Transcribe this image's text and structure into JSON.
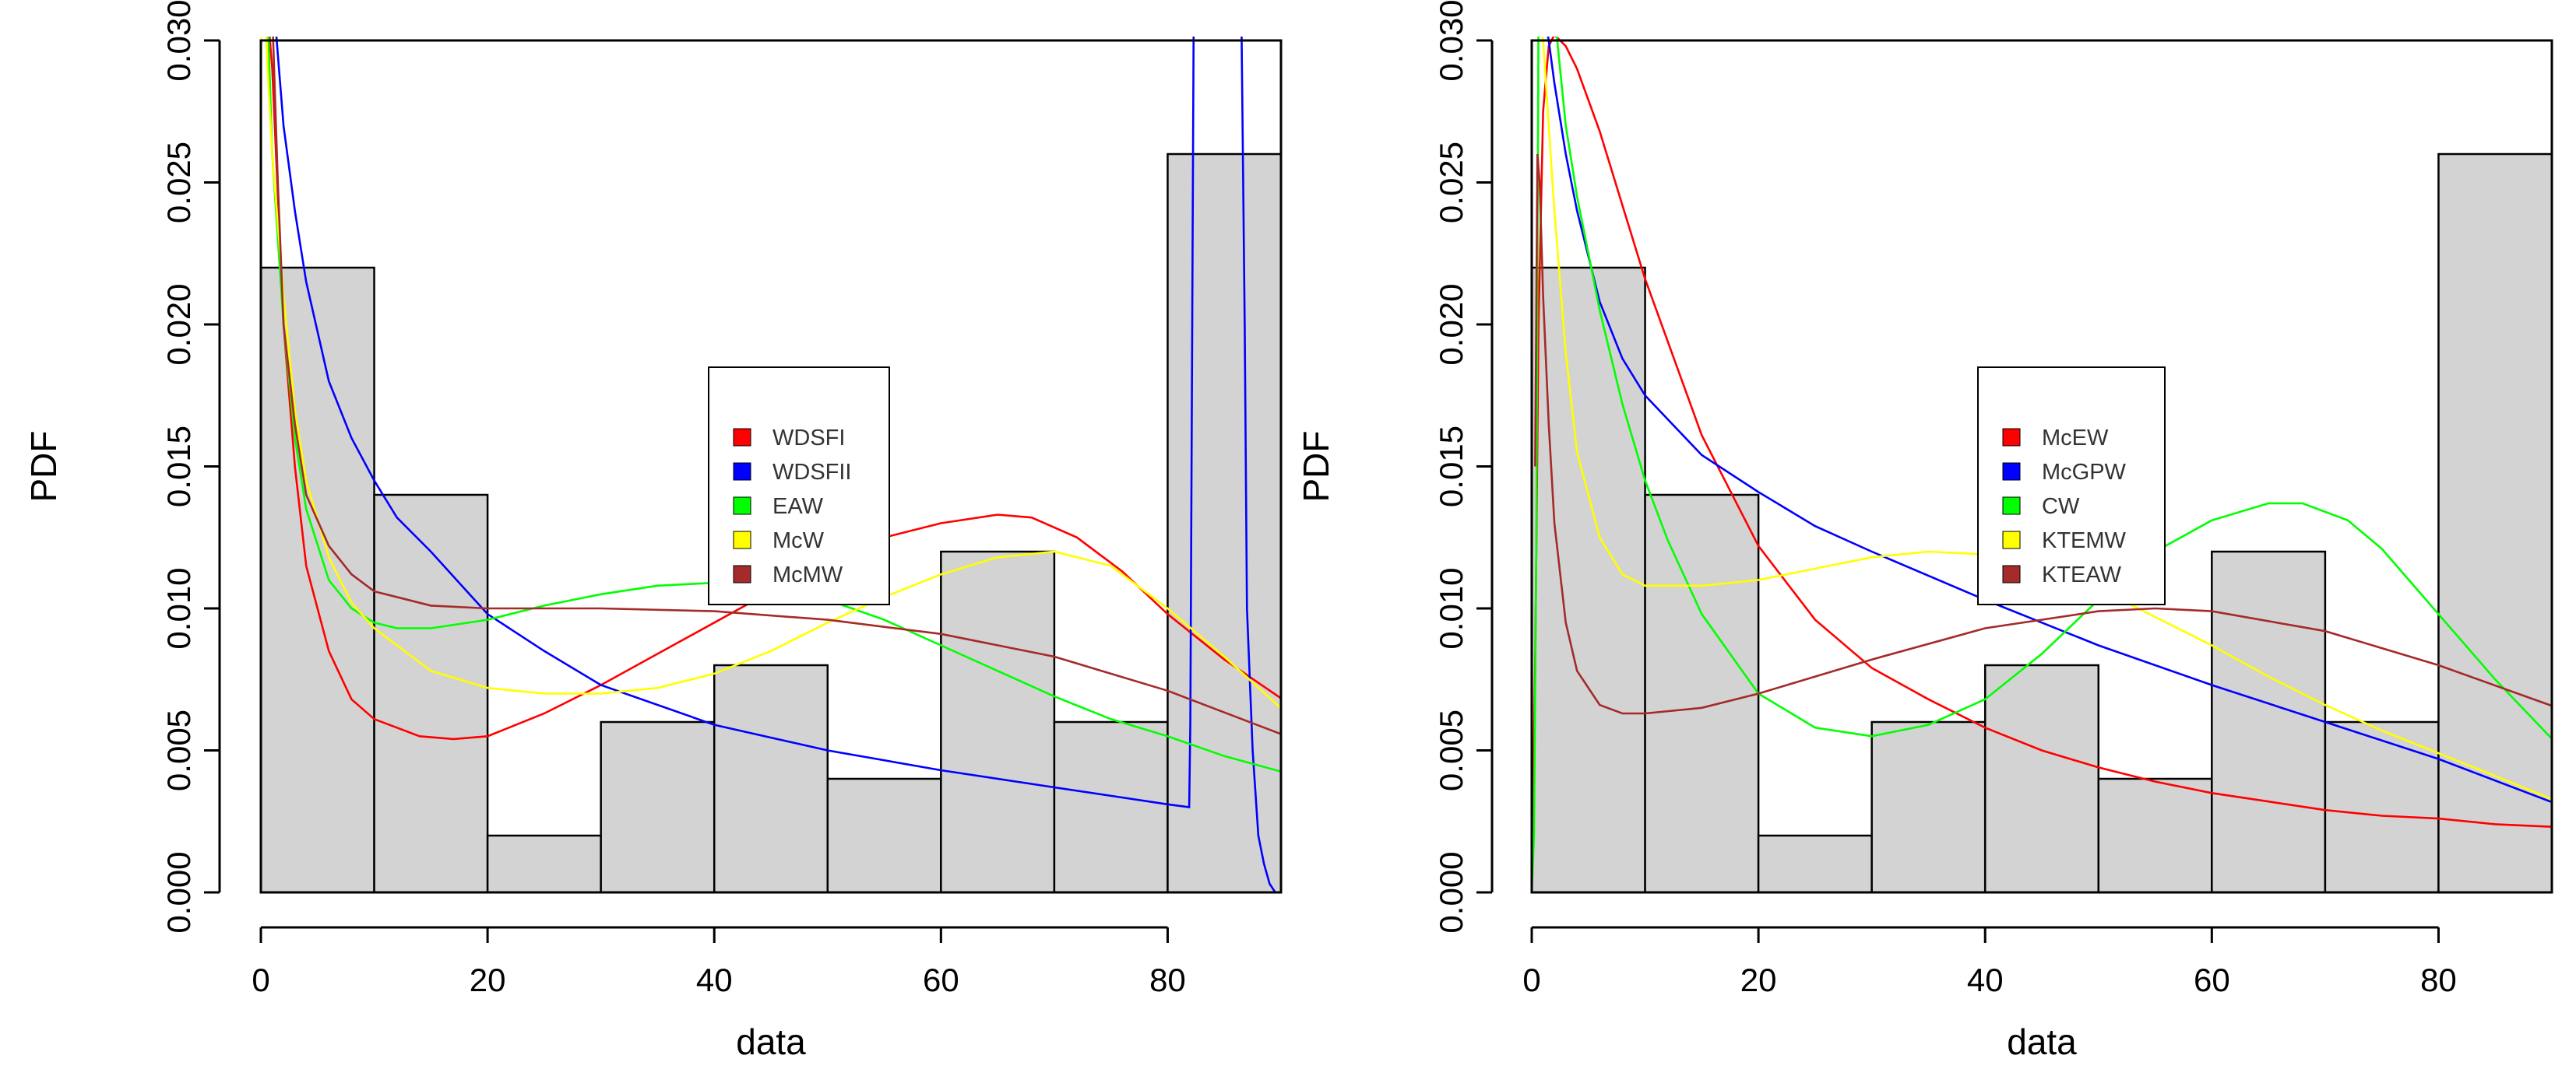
{
  "chart_data": [
    {
      "type": "histogram_with_density_curves",
      "xlabel": "data",
      "ylabel": "PDF",
      "xlim": [
        0,
        90
      ],
      "ylim": [
        0,
        0.03
      ],
      "x_ticks": [
        0,
        20,
        40,
        60,
        80
      ],
      "x_tick_labels": [
        "0",
        "20",
        "40",
        "60",
        "80"
      ],
      "y_ticks": [
        0,
        0.005,
        0.01,
        0.015,
        0.02,
        0.025,
        0.03
      ],
      "y_tick_labels": [
        "0.000",
        "0.005",
        "0.010",
        "0.015",
        "0.020",
        "0.025",
        "0.030"
      ],
      "histogram": {
        "bin_edges": [
          0,
          10,
          20,
          30,
          40,
          50,
          60,
          70,
          80,
          90
        ],
        "density": [
          0.022,
          0.014,
          0.002,
          0.006,
          0.008,
          0.004,
          0.012,
          0.006,
          0.026
        ]
      },
      "legend_position": "center-right",
      "series": [
        {
          "name": "WDSFI",
          "color": "#ff0000",
          "x": [
            0.3,
            0.6,
            1,
            2,
            3,
            4,
            6,
            8,
            10,
            14,
            17,
            20,
            25,
            30,
            35,
            40,
            45,
            50,
            55,
            60,
            65,
            68,
            72,
            76,
            80,
            85,
            90.5
          ],
          "y": [
            0.031,
            0.031,
            0.029,
            0.02,
            0.015,
            0.0115,
            0.0085,
            0.0068,
            0.0061,
            0.0055,
            0.0054,
            0.0055,
            0.0063,
            0.0073,
            0.0084,
            0.0095,
            0.0106,
            0.0117,
            0.0125,
            0.013,
            0.0133,
            0.0132,
            0.0125,
            0.0113,
            0.0098,
            0.0082,
            0.0067
          ]
        },
        {
          "name": "WDSFII",
          "color": "#0000ff",
          "x": [
            1.2,
            1.5,
            2,
            3,
            4,
            6,
            8,
            10,
            12,
            15,
            20,
            25,
            30,
            40,
            50,
            60,
            70,
            75,
            80,
            81.9,
            82,
            82.3,
            83,
            84,
            85,
            86,
            86.5,
            86.8,
            87,
            87.5,
            88,
            88.5,
            89,
            89.5,
            90.5
          ],
          "y": [
            0.031,
            0.0295,
            0.027,
            0.024,
            0.0215,
            0.018,
            0.016,
            0.0145,
            0.0132,
            0.012,
            0.0098,
            0.0085,
            0.0073,
            0.0059,
            0.005,
            0.0043,
            0.0037,
            0.0034,
            0.0031,
            0.003,
            0.006,
            0.031,
            0.031,
            0.031,
            0.031,
            0.031,
            0.031,
            0.02,
            0.01,
            0.005,
            0.002,
            0.001,
            0.0003,
            0.0,
            0.0
          ]
        },
        {
          "name": "EAW",
          "color": "#00ff00",
          "x": [
            0.3,
            0.6,
            1,
            2,
            3,
            4,
            6,
            8,
            10,
            12,
            15,
            20,
            25,
            30,
            35,
            40,
            45,
            50,
            55,
            60,
            65,
            70,
            75,
            80,
            85,
            90.5
          ],
          "y": [
            0.031,
            0.031,
            0.026,
            0.02,
            0.016,
            0.0135,
            0.011,
            0.01,
            0.0095,
            0.0093,
            0.0093,
            0.0096,
            0.0101,
            0.0105,
            0.0108,
            0.0109,
            0.0107,
            0.0103,
            0.0096,
            0.0087,
            0.0078,
            0.0069,
            0.0061,
            0.0055,
            0.0048,
            0.0042
          ]
        },
        {
          "name": "McW",
          "color": "#ffff00",
          "x": [
            0,
            0.01,
            0.2,
            0.4,
            0.6,
            1,
            2,
            3,
            4,
            6,
            8,
            10,
            15,
            20,
            25,
            30,
            35,
            40,
            45,
            50,
            55,
            60,
            65,
            70,
            75,
            80,
            85,
            90.5
          ],
          "y": [
            0,
            0.031,
            0.031,
            0.031,
            0.029,
            0.026,
            0.021,
            0.017,
            0.0145,
            0.0118,
            0.0102,
            0.0093,
            0.0078,
            0.0072,
            0.007,
            0.007,
            0.0072,
            0.0077,
            0.0085,
            0.0095,
            0.0104,
            0.0112,
            0.0118,
            0.012,
            0.0115,
            0.01,
            0.0083,
            0.0063
          ]
        },
        {
          "name": "McMW",
          "color": "#a52a2a",
          "x": [
            1,
            1.5,
            2,
            3,
            4,
            6,
            8,
            10,
            15,
            20,
            25,
            30,
            40,
            50,
            60,
            70,
            80,
            90.5
          ],
          "y": [
            0.031,
            0.025,
            0.02,
            0.0165,
            0.014,
            0.0122,
            0.0112,
            0.0106,
            0.0101,
            0.01,
            0.01,
            0.01,
            0.0099,
            0.0096,
            0.0091,
            0.0083,
            0.0071,
            0.0055
          ]
        }
      ]
    },
    {
      "type": "histogram_with_density_curves",
      "xlabel": "data",
      "ylabel": "PDF",
      "xlim": [
        0,
        90
      ],
      "ylim": [
        0,
        0.03
      ],
      "x_ticks": [
        0,
        20,
        40,
        60,
        80
      ],
      "x_tick_labels": [
        "0",
        "20",
        "40",
        "60",
        "80"
      ],
      "y_ticks": [
        0,
        0.005,
        0.01,
        0.015,
        0.02,
        0.025,
        0.03
      ],
      "y_tick_labels": [
        "0.000",
        "0.005",
        "0.010",
        "0.015",
        "0.020",
        "0.025",
        "0.030"
      ],
      "histogram": {
        "bin_edges": [
          0,
          10,
          20,
          30,
          40,
          50,
          60,
          70,
          80,
          90
        ],
        "density": [
          0.022,
          0.014,
          0.002,
          0.006,
          0.008,
          0.004,
          0.012,
          0.006,
          0.026
        ]
      },
      "legend_position": "center",
      "series": [
        {
          "name": "McEW",
          "color": "#ff0000",
          "x": [
            0,
            0.3,
            0.6,
            1,
            1.5,
            2,
            3,
            4,
            6,
            8,
            10,
            15,
            20,
            25,
            30,
            35,
            40,
            45,
            50,
            55,
            60,
            65,
            70,
            75,
            80,
            85,
            90.5
          ],
          "y": [
            0,
            0.008,
            0.02,
            0.0275,
            0.0298,
            0.0302,
            0.0298,
            0.029,
            0.0268,
            0.0242,
            0.0216,
            0.0161,
            0.0122,
            0.0096,
            0.0079,
            0.0068,
            0.0058,
            0.005,
            0.0044,
            0.0039,
            0.0035,
            0.0032,
            0.0029,
            0.0027,
            0.0026,
            0.0024,
            0.0023
          ]
        },
        {
          "name": "McGPW",
          "color": "#0000ff",
          "x": [
            0.9,
            1.1,
            1.5,
            2,
            3,
            4,
            6,
            8,
            10,
            15,
            20,
            25,
            30,
            40,
            50,
            60,
            70,
            80,
            90.5
          ],
          "y": [
            0.031,
            0.031,
            0.03,
            0.0285,
            0.026,
            0.024,
            0.0208,
            0.0188,
            0.0175,
            0.0154,
            0.0141,
            0.0129,
            0.012,
            0.0103,
            0.0087,
            0.0073,
            0.006,
            0.0047,
            0.0031
          ]
        },
        {
          "name": "CW",
          "color": "#00ff00",
          "x": [
            0,
            0.2,
            0.4,
            0.6,
            1,
            2,
            3,
            4,
            6,
            8,
            10,
            12,
            15,
            20,
            25,
            30,
            35,
            40,
            45,
            50,
            55,
            60,
            65,
            68,
            72,
            75,
            80,
            85,
            90.5
          ],
          "y": [
            0,
            0.002,
            0.012,
            0.031,
            0.031,
            0.031,
            0.027,
            0.0245,
            0.0205,
            0.0172,
            0.0145,
            0.0124,
            0.0098,
            0.007,
            0.0058,
            0.0055,
            0.0059,
            0.0068,
            0.0084,
            0.0103,
            0.012,
            0.0131,
            0.0137,
            0.0137,
            0.0131,
            0.0121,
            0.0098,
            0.0075,
            0.0052
          ]
        },
        {
          "name": "KTEMW",
          "color": "#ffff00",
          "x": [
            0.4,
            0.6,
            1,
            1.5,
            2,
            3,
            4,
            6,
            8,
            10,
            15,
            20,
            25,
            30,
            35,
            40,
            45,
            50,
            55,
            60,
            65,
            70,
            75,
            80,
            85,
            90.5
          ],
          "y": [
            0.031,
            0.031,
            0.03,
            0.027,
            0.024,
            0.019,
            0.0155,
            0.0125,
            0.0112,
            0.0108,
            0.0108,
            0.011,
            0.0114,
            0.0118,
            0.012,
            0.0119,
            0.0115,
            0.0107,
            0.0097,
            0.0087,
            0.0076,
            0.0066,
            0.0057,
            0.0049,
            0.0041,
            0.0032
          ]
        },
        {
          "name": "KTEAW",
          "color": "#a52a2a",
          "x": [
            0.3,
            0.5,
            0.7,
            1,
            1.5,
            2,
            3,
            4,
            6,
            8,
            10,
            15,
            20,
            25,
            30,
            40,
            50,
            55,
            60,
            70,
            80,
            90.5
          ],
          "y": [
            0.015,
            0.026,
            0.025,
            0.021,
            0.0165,
            0.013,
            0.0095,
            0.0078,
            0.0066,
            0.0063,
            0.0063,
            0.0065,
            0.007,
            0.0076,
            0.0082,
            0.0093,
            0.0099,
            0.01,
            0.0099,
            0.0092,
            0.008,
            0.0065
          ]
        }
      ]
    }
  ]
}
